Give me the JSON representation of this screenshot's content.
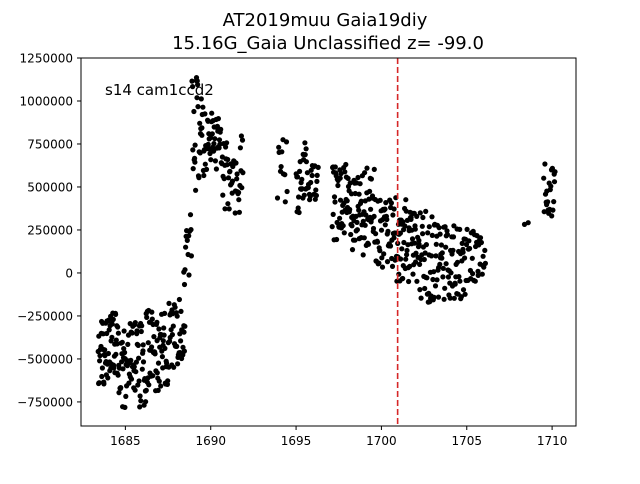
{
  "chart_data": {
    "type": "scatter",
    "title_line1": "AT2019muu  Gaia19diy",
    "title_line2": "15.16G_Gaia Unclassified z= -99.0",
    "annotation": "s14 cam1ccd2",
    "xlabel": "",
    "ylabel": "",
    "xlim": [
      1682.4,
      1711.4
    ],
    "ylim": [
      -890000,
      1250000
    ],
    "xticks": [
      1685,
      1690,
      1695,
      1700,
      1705,
      1710
    ],
    "yticks": [
      -750000,
      -500000,
      -250000,
      0,
      250000,
      500000,
      750000,
      1000000,
      1250000
    ],
    "grid": false,
    "vline": {
      "x": 1700.95,
      "color": "#d62728",
      "style": "dashed"
    },
    "marker_color": "#000000",
    "segments": [
      {
        "x0": 1683.4,
        "x1": 1684.6,
        "ymin": -660000,
        "ymax": -230000,
        "n": 60
      },
      {
        "x0": 1684.6,
        "x1": 1686.2,
        "ymin": -790000,
        "ymax": -280000,
        "n": 70
      },
      {
        "x0": 1686.2,
        "x1": 1687.5,
        "ymin": -690000,
        "ymax": -180000,
        "n": 60
      },
      {
        "x0": 1687.5,
        "x1": 1688.5,
        "ymin": -560000,
        "ymax": -130000,
        "n": 40
      },
      {
        "x0": 1688.4,
        "x1": 1688.9,
        "ymin": -100000,
        "ymax": 380000,
        "n": 14
      },
      {
        "x0": 1688.9,
        "x1": 1689.6,
        "ymin": 480000,
        "ymax": 1150000,
        "n": 30
      },
      {
        "x0": 1689.6,
        "x1": 1690.6,
        "ymin": 600000,
        "ymax": 930000,
        "n": 40
      },
      {
        "x0": 1690.6,
        "x1": 1691.9,
        "ymin": 340000,
        "ymax": 800000,
        "n": 45
      },
      {
        "x0": 1693.9,
        "x1": 1694.5,
        "ymin": 400000,
        "ymax": 780000,
        "n": 12
      },
      {
        "x0": 1695.0,
        "x1": 1695.6,
        "ymin": 350000,
        "ymax": 760000,
        "n": 22
      },
      {
        "x0": 1695.6,
        "x1": 1696.3,
        "ymin": 420000,
        "ymax": 650000,
        "n": 22
      },
      {
        "x0": 1697.1,
        "x1": 1698.3,
        "ymin": 180000,
        "ymax": 640000,
        "n": 50
      },
      {
        "x0": 1698.3,
        "x1": 1699.6,
        "ymin": 100000,
        "ymax": 610000,
        "n": 55
      },
      {
        "x0": 1699.6,
        "x1": 1700.9,
        "ymin": 30000,
        "ymax": 440000,
        "n": 50
      },
      {
        "x0": 1700.9,
        "x1": 1702.0,
        "ymin": -70000,
        "ymax": 480000,
        "n": 50
      },
      {
        "x0": 1702.0,
        "x1": 1703.5,
        "ymin": -170000,
        "ymax": 360000,
        "n": 60
      },
      {
        "x0": 1703.5,
        "x1": 1705.0,
        "ymin": -160000,
        "ymax": 300000,
        "n": 55
      },
      {
        "x0": 1705.0,
        "x1": 1706.1,
        "ymin": -50000,
        "ymax": 260000,
        "n": 30
      },
      {
        "x0": 1708.3,
        "x1": 1708.7,
        "ymin": 280000,
        "ymax": 300000,
        "n": 2
      },
      {
        "x0": 1709.5,
        "x1": 1710.2,
        "ymin": 290000,
        "ymax": 650000,
        "n": 22
      }
    ]
  }
}
